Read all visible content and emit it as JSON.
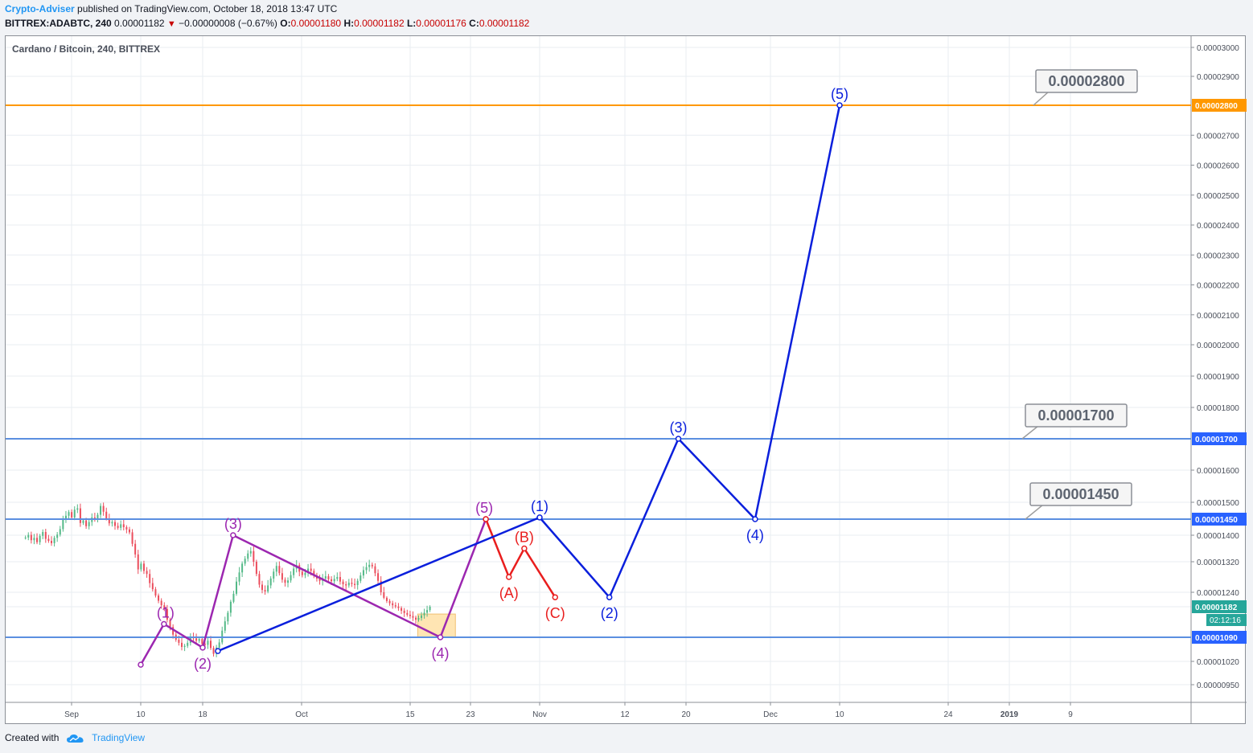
{
  "header": {
    "author": "Crypto-Adviser",
    "published_text": " published on TradingView.com, October 18, 2018 13:47 UTC",
    "symbol": "BITTREX:ADABTC, 240",
    "last": "0.00001182",
    "change": "−0.00000008 (−0.67%)",
    "o_label": "O:",
    "o": "0.00001180",
    "h_label": "H:",
    "h": "0.00001182",
    "l_label": "L:",
    "l": "0.00001176",
    "c_label": "C:",
    "c": "0.00001182"
  },
  "footer": {
    "created_with": "Created with",
    "brand": "TradingView"
  },
  "chart_data": {
    "type": "line",
    "title": "Cardano / Bitcoin, 240, BITTREX",
    "x_ticks": [
      "Sep",
      "10",
      "18",
      "Oct",
      "15",
      "23",
      "Nov",
      "12",
      "20",
      "Dec",
      "10",
      "24",
      "2019",
      "9"
    ],
    "y_ticks": [
      "0.00003000",
      "0.00002900",
      "0.00002800",
      "0.00002700",
      "0.00002600",
      "0.00002500",
      "0.00002400",
      "0.00002300",
      "0.00002200",
      "0.00002100",
      "0.00002000",
      "0.00001900",
      "0.00001800",
      "0.00001700",
      "0.00001600",
      "0.00001500",
      "0.00001450",
      "0.00001400",
      "0.00001320",
      "0.00001240",
      "0.00001182",
      "0.00001090",
      "0.00001020",
      "0.00000950"
    ],
    "y_ticks_num": [
      3000,
      2900,
      2800,
      2700,
      2600,
      2500,
      2400,
      2300,
      2200,
      2100,
      2000,
      1900,
      1800,
      1700,
      1600,
      1500,
      1450,
      1400,
      1320,
      1240,
      1182,
      1090,
      1020,
      950
    ],
    "price_scale_note": "y values in units of 1e-8 BTC",
    "countdown": "02:12:16",
    "horizontal_levels": [
      {
        "value": "0.00002800",
        "num": 2800,
        "color": "#ff9800",
        "callout": "0.00002800"
      },
      {
        "value": "0.00001700",
        "num": 1700,
        "color": "#5b8fe0",
        "callout": "0.00001700"
      },
      {
        "value": "0.00001450",
        "num": 1450,
        "color": "#5b8fe0",
        "callout": "0.00001450"
      },
      {
        "value": "0.00001090",
        "num": 1090,
        "color": "#5b8fe0",
        "callout": ""
      }
    ],
    "current_price": {
      "value": "0.00001182",
      "num": 1182,
      "color": "#26a69a"
    },
    "candles_close": [
      1393,
      1401,
      1385,
      1392,
      1379,
      1398,
      1410,
      1389,
      1383,
      1376,
      1392,
      1402,
      1419,
      1448,
      1460,
      1471,
      1455,
      1478,
      1482,
      1438,
      1446,
      1428,
      1441,
      1455,
      1448,
      1463,
      1489,
      1472,
      1452,
      1437,
      1441,
      1429,
      1423,
      1434,
      1425,
      1418,
      1409,
      1374,
      1342,
      1300,
      1315,
      1296,
      1288,
      1264,
      1248,
      1227,
      1206,
      1188,
      1175,
      1143,
      1121,
      1098,
      1083,
      1074,
      1062,
      1065,
      1074,
      1092,
      1087,
      1080,
      1085,
      1071,
      1068,
      1080,
      1059,
      1042,
      1060,
      1075,
      1110,
      1138,
      1164,
      1202,
      1234,
      1268,
      1292,
      1315,
      1329,
      1345,
      1352,
      1320,
      1288,
      1260,
      1246,
      1242,
      1258,
      1276,
      1294,
      1309,
      1290,
      1273,
      1265,
      1271,
      1285,
      1302,
      1311,
      1294,
      1285,
      1291,
      1302,
      1296,
      1283,
      1276,
      1270,
      1276,
      1282,
      1274,
      1269,
      1275,
      1280,
      1268,
      1261,
      1258,
      1265,
      1262,
      1259,
      1270,
      1284,
      1298,
      1306,
      1312,
      1308,
      1290,
      1270,
      1240,
      1218,
      1205,
      1196,
      1188,
      1183,
      1178,
      1170,
      1163,
      1158,
      1154,
      1149,
      1143,
      1148,
      1156,
      1164,
      1172,
      1182
    ],
    "labels_x": [
      "(1)",
      "(2)",
      "(3)",
      "(4)",
      "(5)",
      "(A)",
      "(B)",
      "(C)"
    ],
    "purple_wave": {
      "color": "#9c27b0",
      "points": [
        {
          "t": "Sep 10",
          "v": 1010,
          "label": ""
        },
        {
          "t": "Sep 13",
          "v": 1130,
          "label": "(1)"
        },
        {
          "t": "Sep 18",
          "v": 1060,
          "label": "(2)"
        },
        {
          "t": "Sep 22",
          "v": 1400,
          "label": "(3)"
        },
        {
          "t": "Oct 19",
          "v": 1090,
          "label": "(4)"
        },
        {
          "t": "Oct 25",
          "v": 1450,
          "label": "(5)"
        }
      ]
    },
    "red_correction": {
      "color": "#e91e1e",
      "points": [
        {
          "t": "Oct 25",
          "v": 1450,
          "label": ""
        },
        {
          "t": "Oct 28",
          "v": 1280,
          "label": "(A)"
        },
        {
          "t": "Oct 30",
          "v": 1360,
          "label": "(B)"
        },
        {
          "t": "Nov 3",
          "v": 1220,
          "label": "(C)"
        }
      ]
    },
    "blue_wave": {
      "color": "#0a1fdc",
      "points": [
        {
          "t": "Sep 20",
          "v": 1050,
          "label": ""
        },
        {
          "t": "Nov 1",
          "v": 1455,
          "label": "(1)"
        },
        {
          "t": "Nov 10",
          "v": 1220,
          "label": "(2)"
        },
        {
          "t": "Nov 19",
          "v": 1700,
          "label": "(3)"
        },
        {
          "t": "Nov 29",
          "v": 1450,
          "label": "(4)"
        },
        {
          "t": "Dec 10",
          "v": 2800,
          "label": "(5)"
        }
      ]
    },
    "highlight_box": {
      "from": "Oct 16",
      "to": "Oct 21",
      "top": 1160,
      "bottom": 1090,
      "color": "#ffe0a6"
    },
    "grid": true,
    "legend": "none"
  }
}
